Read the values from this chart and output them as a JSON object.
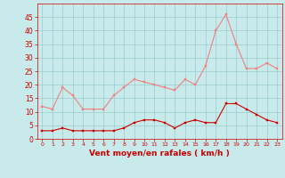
{
  "hours": [
    0,
    1,
    2,
    3,
    4,
    5,
    6,
    7,
    8,
    9,
    10,
    11,
    12,
    13,
    14,
    15,
    16,
    17,
    18,
    19,
    20,
    21,
    22,
    23
  ],
  "rafales": [
    12,
    11,
    19,
    16,
    11,
    11,
    11,
    16,
    19,
    22,
    21,
    20,
    19,
    18,
    22,
    20,
    27,
    40,
    46,
    35,
    26,
    26,
    28,
    26
  ],
  "moyen": [
    3,
    3,
    4,
    3,
    3,
    3,
    3,
    3,
    4,
    6,
    7,
    7,
    6,
    4,
    6,
    7,
    6,
    6,
    13,
    13,
    11,
    9,
    7,
    6
  ],
  "color_rafales": "#f08080",
  "color_moyen": "#cc0000",
  "bg_color": "#c8eaea",
  "grid_color": "#99cccc",
  "xlabel": "Vent moyen/en rafales ( km/h )",
  "xlabel_color": "#cc0000",
  "tick_color": "#cc0000",
  "ylim": [
    0,
    50
  ],
  "yticks": [
    0,
    5,
    10,
    15,
    20,
    25,
    30,
    35,
    40,
    45
  ],
  "xlim": [
    -0.5,
    23.5
  ],
  "marker_size": 2.0,
  "line_width": 0.8
}
